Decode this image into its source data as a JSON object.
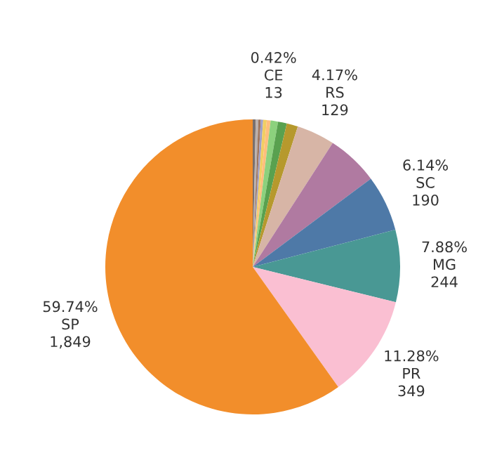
{
  "chart_data": {
    "type": "pie",
    "categories": [
      null,
      null,
      null,
      null,
      null,
      "CE",
      null,
      null,
      null,
      "RS",
      null,
      "SC",
      "MG",
      "PR",
      "SP"
    ],
    "values": [
      10,
      9,
      8,
      8,
      12,
      13,
      25,
      30,
      38,
      129,
      175,
      190,
      244,
      349,
      1849
    ],
    "value_labels": [
      null,
      null,
      null,
      null,
      null,
      "13",
      null,
      null,
      null,
      "129",
      null,
      "190",
      "244",
      "349",
      "1,849"
    ],
    "annotations": [
      {
        "text": "0.42%",
        "x": "CE"
      },
      {
        "text": "4.17%",
        "x": "RS"
      },
      {
        "text": "6.14%",
        "x": "SC"
      },
      {
        "text": "7.88%",
        "x": "MG"
      },
      {
        "text": "11.28%",
        "x": "PR"
      },
      {
        "text": "59.74%",
        "x": "SP"
      }
    ],
    "colors": [
      "#79706e",
      "#bab0ac",
      "#9d7660",
      "#a0a0c8",
      "#f1ce63",
      "#ffbe7d",
      "#8cd17d",
      "#59a14f",
      "#b6992d",
      "#d7b5a6",
      "#b07aa1",
      "#4e79a7",
      "#499894",
      "#fabfd2",
      "#f28e2b"
    ]
  }
}
